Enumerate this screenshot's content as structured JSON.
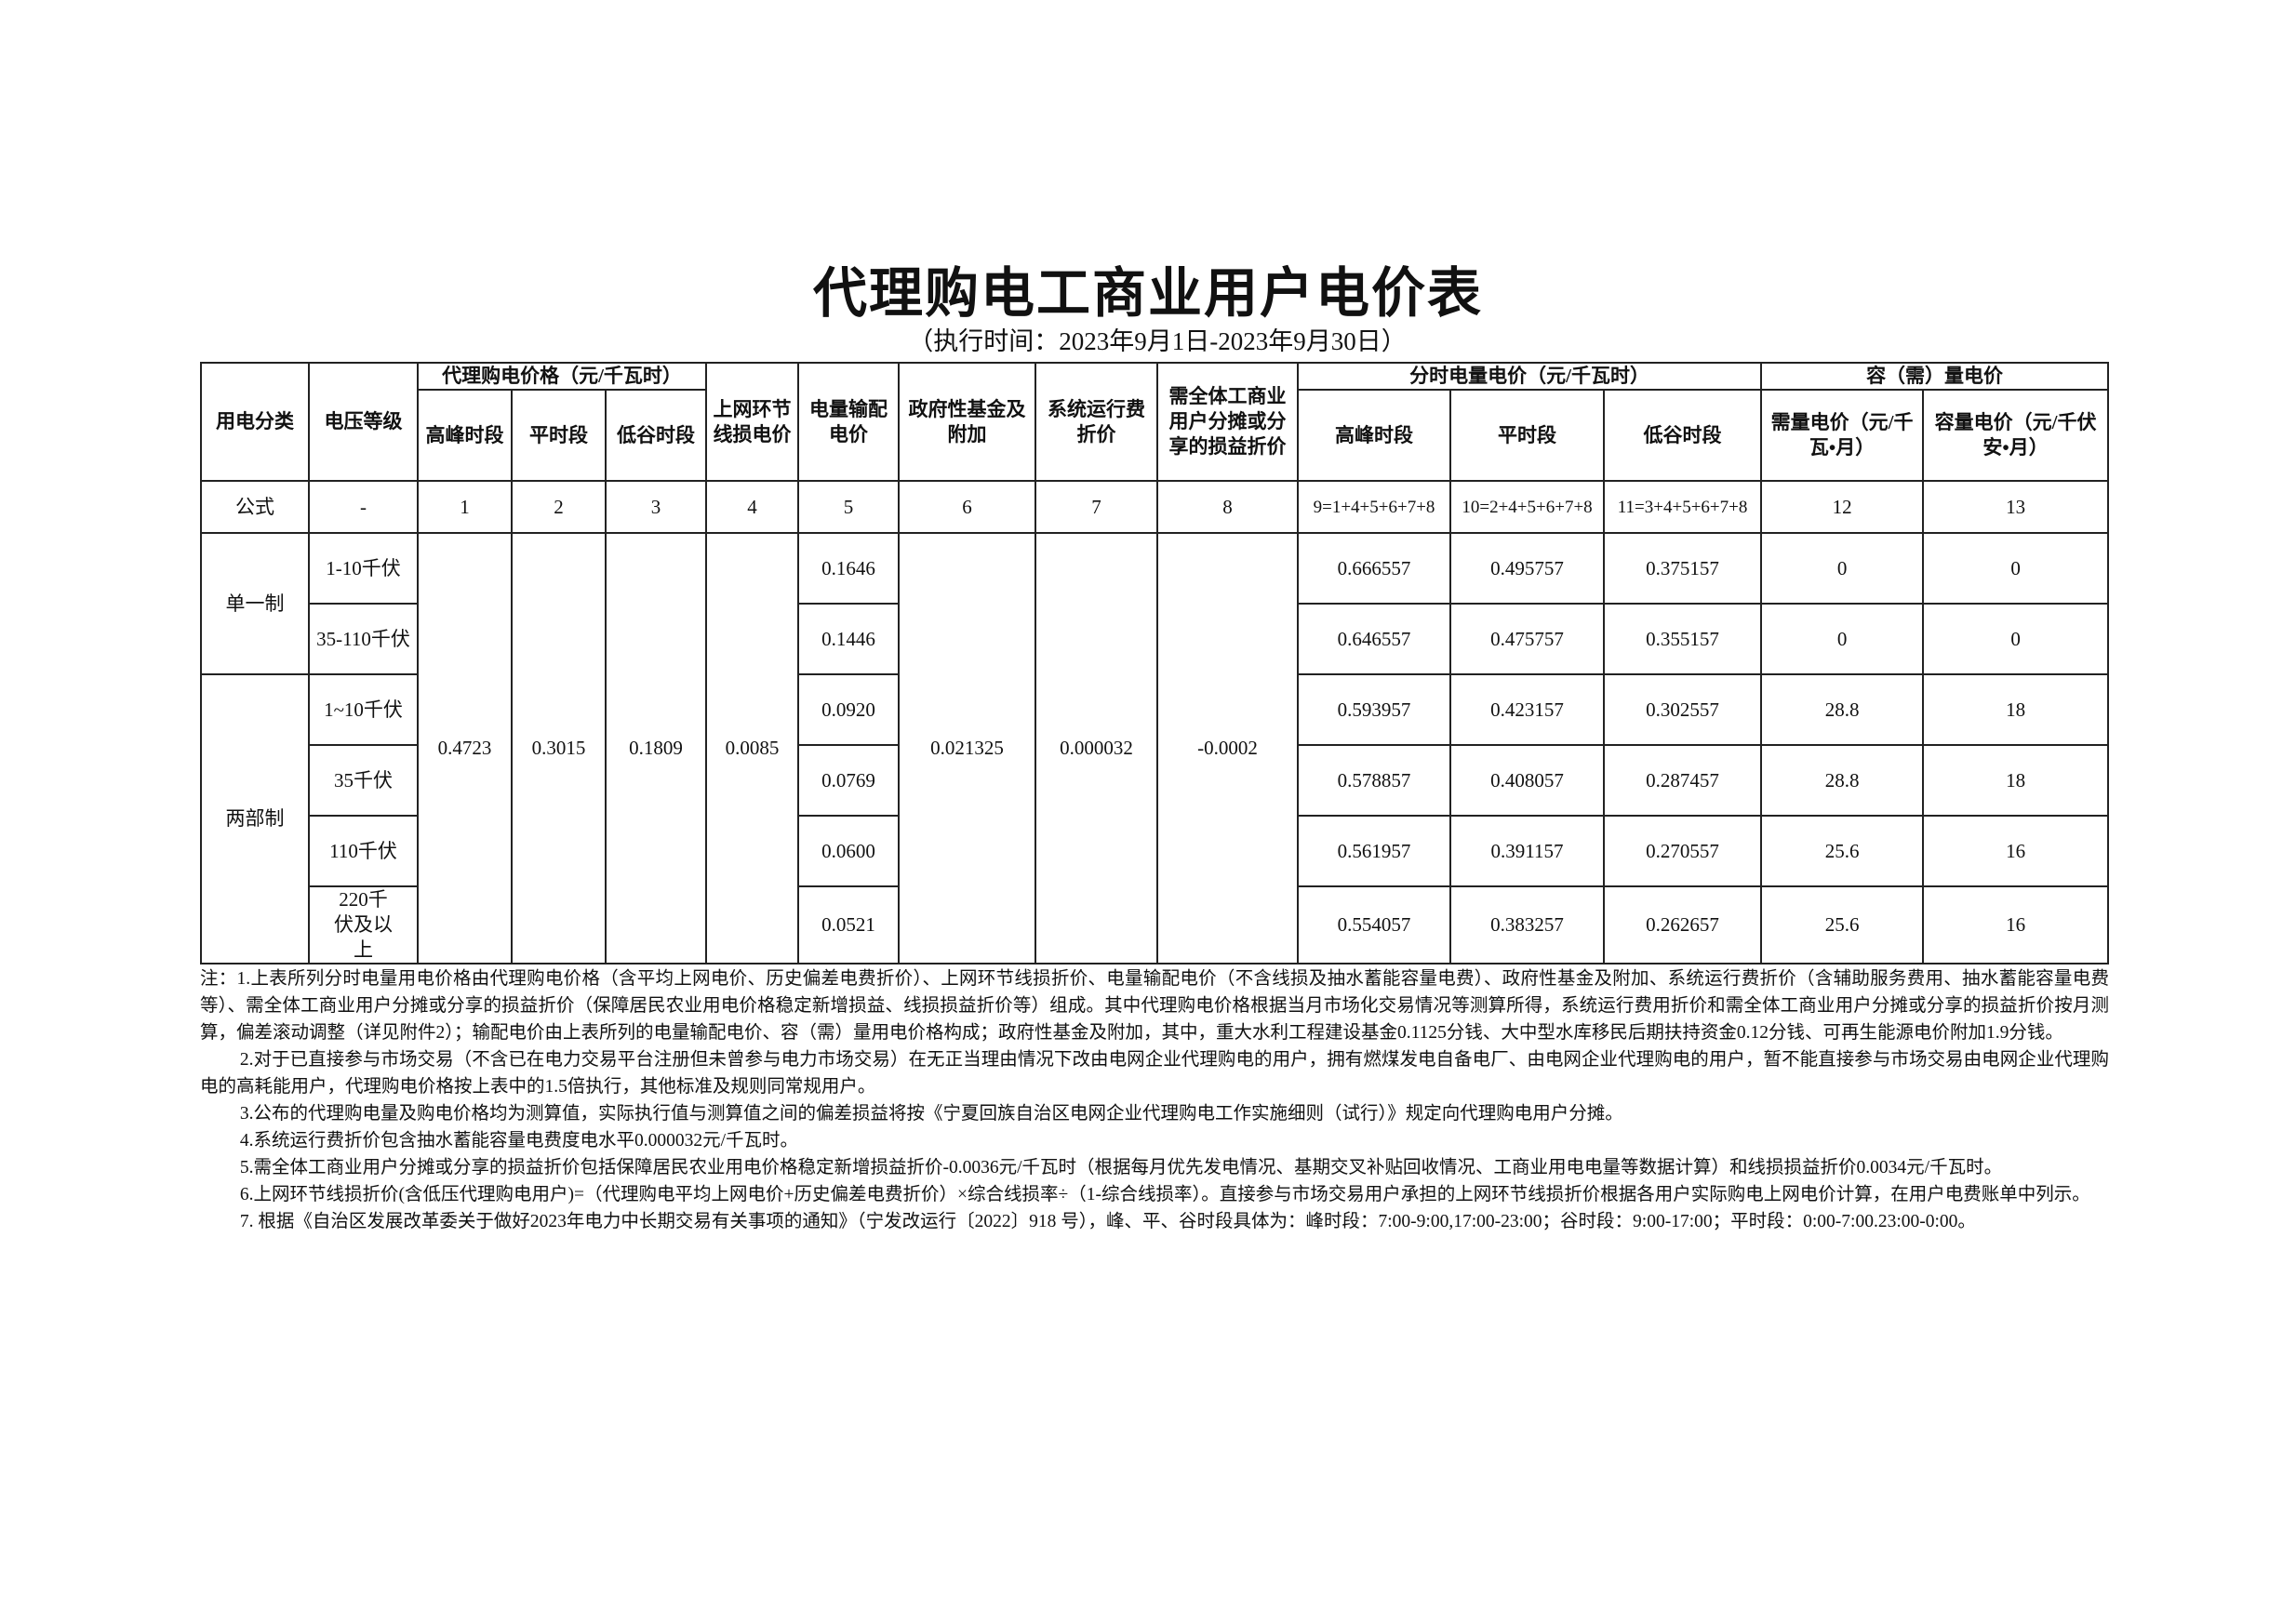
{
  "title": "代理购电工商业用户电价表",
  "subtitle": "（执行时间：2023年9月1日-2023年9月30日）",
  "headers": {
    "category": "用电分类",
    "voltage": "电压等级",
    "proxy_price": "代理购电价格（元/千瓦时）",
    "peak": "高峰时段",
    "flat": "平时段",
    "valley": "低谷时段",
    "line_loss": "上网环节线损电价",
    "transmission": "电量输配电价",
    "gov_fund": "政府性基金及附加",
    "system_op": "系统运行费折价",
    "shared_loss": "需全体工商业用户分摊或分享的损益折价",
    "tou_price": "分时电量电价（元/千瓦时）",
    "tou_peak": "高峰时段",
    "tou_flat": "平时段",
    "tou_valley": "低谷时段",
    "capacity": "容（需）量电价",
    "demand_price": "需量电价（元/千瓦•月）",
    "capacity_price": "容量电价（元/千伏安•月）"
  },
  "formula_row": [
    "公式",
    "-",
    "1",
    "2",
    "3",
    "4",
    "5",
    "6",
    "7",
    "8",
    "9=1+4+5+6+7+8",
    "10=2+4+5+6+7+8",
    "11=3+4+5+6+7+8",
    "12",
    "13"
  ],
  "shared": {
    "peak": "0.4723",
    "flat": "0.3015",
    "valley": "0.1809",
    "line_loss": "0.0085",
    "gov_fund": "0.021325",
    "system_op": "0.000032",
    "shared_loss": "-0.0002"
  },
  "groups": [
    "单一制",
    "两部制"
  ],
  "rows": [
    {
      "voltage": "1-10千伏",
      "transmission": "0.1646",
      "tou_peak": "0.666557",
      "tou_flat": "0.495757",
      "tou_valley": "0.375157",
      "demand": "0",
      "capacity": "0"
    },
    {
      "voltage": "35-110千伏",
      "transmission": "0.1446",
      "tou_peak": "0.646557",
      "tou_flat": "0.475757",
      "tou_valley": "0.355157",
      "demand": "0",
      "capacity": "0"
    },
    {
      "voltage": "1~10千伏",
      "transmission": "0.0920",
      "tou_peak": "0.593957",
      "tou_flat": "0.423157",
      "tou_valley": "0.302557",
      "demand": "28.8",
      "capacity": "18"
    },
    {
      "voltage": "35千伏",
      "transmission": "0.0769",
      "tou_peak": "0.578857",
      "tou_flat": "0.408057",
      "tou_valley": "0.287457",
      "demand": "28.8",
      "capacity": "18"
    },
    {
      "voltage": "110千伏",
      "transmission": "0.0600",
      "tou_peak": "0.561957",
      "tou_flat": "0.391157",
      "tou_valley": "0.270557",
      "demand": "25.6",
      "capacity": "16"
    },
    {
      "voltage": "220千伏及以上",
      "transmission": "0.0521",
      "tou_peak": "0.554057",
      "tou_flat": "0.383257",
      "tou_valley": "0.262657",
      "demand": "25.6",
      "capacity": "16"
    }
  ],
  "notes": [
    "注：1.上表所列分时电量用电价格由代理购电价格（含平均上网电价、历史偏差电费折价）、上网环节线损折价、电量输配电价（不含线损及抽水蓄能容量电费）、政府性基金及附加、系统运行费折价（含辅助服务费用、抽水蓄能容量电费等）、需全体工商业用户分摊或分享的损益折价（保障居民农业用电价格稳定新增损益、线损损益折价等）组成。其中代理购电价格根据当月市场化交易情况等测算所得，系统运行费用折价和需全体工商业用户分摊或分享的损益折价按月测算，偏差滚动调整（详见附件2）；输配电价由上表所列的电量输配电价、容（需）量用电价格构成；政府性基金及附加，其中，重大水利工程建设基金0.1125分钱、大中型水库移民后期扶持资金0.12分钱、可再生能源电价附加1.9分钱。",
    "2.对于已直接参与市场交易（不含已在电力交易平台注册但未曾参与电力市场交易）在无正当理由情况下改由电网企业代理购电的用户，拥有燃煤发电自备电厂、由电网企业代理购电的用户，暂不能直接参与市场交易由电网企业代理购电的高耗能用户，代理购电价格按上表中的1.5倍执行，其他标准及规则同常规用户。",
    "3.公布的代理购电量及购电价格均为测算值，实际执行值与测算值之间的偏差损益将按《宁夏回族自治区电网企业代理购电工作实施细则（试行）》规定向代理购电用户分摊。",
    "4.系统运行费折价包含抽水蓄能容量电费度电水平0.000032元/千瓦时。",
    "5.需全体工商业用户分摊或分享的损益折价包括保障居民农业用电价格稳定新增损益折价-0.0036元/千瓦时（根据每月优先发电情况、基期交叉补贴回收情况、工商业用电电量等数据计算）和线损损益折价0.0034元/千瓦时。",
    "6.上网环节线损折价(含低压代理购电用户)=（代理购电平均上网电价+历史偏差电费折价）×综合线损率÷（1-综合线损率）。直接参与市场交易用户承担的上网环节线损折价根据各用户实际购电上网电价计算，在用户电费账单中列示。",
    "7. 根据《自治区发展改革委关于做好2023年电力中长期交易有关事项的通知》（宁发改运行〔2022〕918 号），峰、平、谷时段具体为：峰时段：7:00-9:00,17:00-23:00；谷时段：9:00-17:00；平时段：0:00-7:00.23:00-0:00。"
  ]
}
